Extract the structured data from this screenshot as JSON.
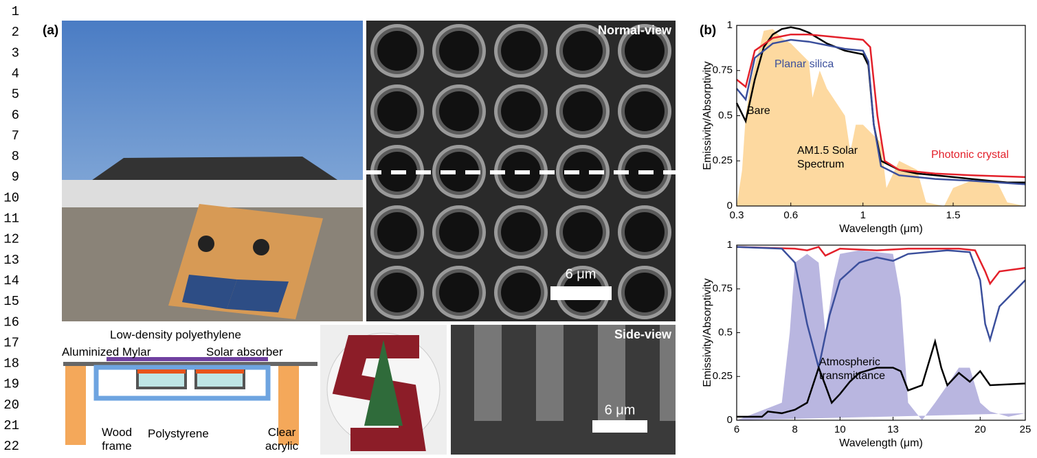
{
  "line_numbers": [
    1,
    2,
    3,
    4,
    5,
    6,
    7,
    8,
    9,
    10,
    11,
    12,
    13,
    14,
    15,
    16,
    17,
    18,
    19,
    20,
    21,
    22
  ],
  "panel_a": {
    "label": "(a)",
    "normal_view": "Normal-view",
    "normal_scale": "6 μm",
    "side_view": "Side-view",
    "side_scale": "6 μm",
    "diagram": {
      "polyethylene": "Low-density polyethylene",
      "mylar": "Aluminized Mylar",
      "absorber": "Solar absorber",
      "wood": "Wood frame",
      "polystyrene": "Polystyrene",
      "acrylic": "Clear acrylic"
    }
  },
  "panel_b": {
    "label": "(b)"
  },
  "chart_data": [
    {
      "type": "line",
      "x_label": "Wavelength (μm)",
      "y_label": "Emissivity/Absorptivity",
      "xlim": [
        0.3,
        1.9
      ],
      "ylim": [
        0,
        1
      ],
      "xticks": [
        0.3,
        0.6,
        1,
        1.5
      ],
      "yticks": [
        0,
        0.25,
        0.5,
        0.75,
        1
      ],
      "series": [
        {
          "name": "AM1.5 Solar Spectrum",
          "style": "area",
          "color": "#fdd9a0",
          "x": [
            0.3,
            0.33,
            0.35,
            0.38,
            0.42,
            0.45,
            0.5,
            0.55,
            0.6,
            0.65,
            0.7,
            0.72,
            0.76,
            0.8,
            0.9,
            0.93,
            0.96,
            1.0,
            1.1,
            1.13,
            1.2,
            1.3,
            1.35,
            1.45,
            1.5,
            1.6,
            1.75,
            1.8,
            1.9
          ],
          "values": [
            0,
            0.2,
            0.5,
            0.7,
            0.85,
            0.97,
            0.98,
            0.93,
            0.9,
            0.85,
            0.8,
            0.6,
            0.75,
            0.65,
            0.5,
            0.3,
            0.45,
            0.45,
            0.35,
            0.1,
            0.25,
            0.2,
            0.02,
            0,
            0.1,
            0.14,
            0.12,
            0.02,
            0
          ]
        },
        {
          "name": "Bare",
          "color": "#000000",
          "x": [
            0.3,
            0.35,
            0.4,
            0.45,
            0.5,
            0.55,
            0.6,
            0.65,
            0.7,
            0.8,
            0.9,
            1.0,
            1.03,
            1.06,
            1.1,
            1.2,
            1.3,
            1.4,
            1.5,
            1.6,
            1.7,
            1.8,
            1.9
          ],
          "values": [
            0.57,
            0.47,
            0.7,
            0.88,
            0.95,
            0.98,
            0.99,
            0.98,
            0.96,
            0.9,
            0.86,
            0.84,
            0.78,
            0.45,
            0.25,
            0.2,
            0.18,
            0.17,
            0.16,
            0.15,
            0.14,
            0.13,
            0.13
          ]
        },
        {
          "name": "Planar silica",
          "color": "#3b4f9c",
          "x": [
            0.3,
            0.35,
            0.4,
            0.5,
            0.6,
            0.7,
            0.8,
            0.9,
            1.0,
            1.03,
            1.06,
            1.1,
            1.2,
            1.4,
            1.6,
            1.9
          ],
          "values": [
            0.65,
            0.59,
            0.82,
            0.9,
            0.92,
            0.91,
            0.89,
            0.87,
            0.86,
            0.8,
            0.45,
            0.22,
            0.17,
            0.15,
            0.14,
            0.12
          ]
        },
        {
          "name": "Photonic crystal",
          "color": "#e3202a",
          "x": [
            0.3,
            0.35,
            0.4,
            0.5,
            0.6,
            0.7,
            0.8,
            0.9,
            1.0,
            1.04,
            1.08,
            1.12,
            1.2,
            1.4,
            1.6,
            1.9
          ],
          "values": [
            0.7,
            0.66,
            0.86,
            0.93,
            0.95,
            0.95,
            0.94,
            0.93,
            0.92,
            0.88,
            0.5,
            0.25,
            0.2,
            0.18,
            0.17,
            0.16
          ]
        }
      ]
    },
    {
      "type": "line",
      "x_label": "Wavelength (μm)",
      "y_label": "Emissivity/Absorptivity",
      "xscale": "log",
      "xlim": [
        6,
        25
      ],
      "ylim": [
        0,
        1
      ],
      "xticks": [
        6,
        8,
        10,
        13,
        20,
        25
      ],
      "yticks": [
        0,
        0.25,
        0.5,
        0.75,
        1
      ],
      "series": [
        {
          "name": "Atmospheric transmittance",
          "style": "area",
          "color": "#b9b6e0",
          "x": [
            6,
            7.5,
            7.8,
            8,
            8.5,
            9,
            9.3,
            9.7,
            10,
            11,
            12,
            13,
            13.5,
            14,
            15,
            16,
            17,
            18,
            19,
            20,
            21,
            23,
            25
          ],
          "values": [
            0,
            0.1,
            0.5,
            0.9,
            0.95,
            0.9,
            0.5,
            0.8,
            0.95,
            0.97,
            0.96,
            0.95,
            0.7,
            0.1,
            0,
            0.1,
            0.2,
            0.3,
            0.3,
            0.1,
            0.05,
            0.02,
            0.04
          ]
        },
        {
          "color": "#e3202a",
          "x": [
            6,
            8,
            8.5,
            9,
            9.3,
            10,
            12,
            14,
            18,
            19.5,
            20.5,
            21,
            22,
            25
          ],
          "values": [
            0.99,
            0.98,
            0.97,
            0.99,
            0.94,
            0.98,
            0.97,
            0.98,
            0.98,
            0.97,
            0.85,
            0.78,
            0.85,
            0.87
          ]
        },
        {
          "color": "#3b4f9c",
          "x": [
            6,
            7.5,
            8,
            8.5,
            9,
            9.5,
            10,
            11,
            12,
            13,
            14,
            17,
            19,
            20,
            20.5,
            21,
            22,
            25
          ],
          "values": [
            0.99,
            0.98,
            0.9,
            0.55,
            0.3,
            0.6,
            0.8,
            0.9,
            0.93,
            0.91,
            0.95,
            0.97,
            0.96,
            0.8,
            0.55,
            0.46,
            0.65,
            0.8
          ]
        },
        {
          "color": "#000000",
          "x": [
            6,
            6.8,
            7,
            7.5,
            8,
            8.5,
            9,
            9.3,
            9.6,
            10,
            10.5,
            11,
            12,
            13,
            13.5,
            14,
            15,
            16,
            16.5,
            17,
            18,
            19,
            20,
            21,
            25
          ],
          "values": [
            0.02,
            0.02,
            0.05,
            0.04,
            0.06,
            0.1,
            0.3,
            0.2,
            0.1,
            0.15,
            0.22,
            0.27,
            0.3,
            0.3,
            0.28,
            0.17,
            0.2,
            0.45,
            0.3,
            0.2,
            0.27,
            0.22,
            0.28,
            0.2,
            0.21
          ]
        }
      ]
    }
  ]
}
